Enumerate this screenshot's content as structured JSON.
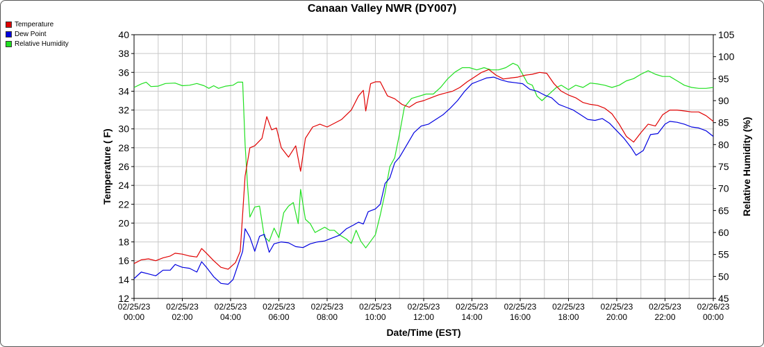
{
  "chart_data": {
    "type": "line",
    "title": "Canaan Valley NWR (DY007)",
    "xlabel": "Date/Time (EST)",
    "ylabel": "Temperature ( F)",
    "y2label": "Relative Humidity (%)",
    "xlim_hours": [
      0,
      24
    ],
    "ylim": [
      12,
      40
    ],
    "y2lim": [
      45,
      105
    ],
    "yticks": [
      "12",
      "14",
      "16",
      "18",
      "20",
      "22",
      "24",
      "26",
      "28",
      "30",
      "32",
      "34",
      "36",
      "38",
      "40"
    ],
    "y2ticks": [
      "45",
      "50",
      "55",
      "60",
      "65",
      "70",
      "75",
      "80",
      "85",
      "90",
      "95",
      "100",
      "105"
    ],
    "xticks": [
      {
        "date": "02/25/23",
        "time": "00:00"
      },
      {
        "date": "02/25/23",
        "time": "02:00"
      },
      {
        "date": "02/25/23",
        "time": "04:00"
      },
      {
        "date": "02/25/23",
        "time": "06:00"
      },
      {
        "date": "02/25/23",
        "time": "08:00"
      },
      {
        "date": "02/25/23",
        "time": "10:00"
      },
      {
        "date": "02/25/23",
        "time": "12:00"
      },
      {
        "date": "02/25/23",
        "time": "14:00"
      },
      {
        "date": "02/25/23",
        "time": "16:00"
      },
      {
        "date": "02/25/23",
        "time": "18:00"
      },
      {
        "date": "02/25/23",
        "time": "20:00"
      },
      {
        "date": "02/25/23",
        "time": "22:00"
      },
      {
        "date": "02/26/23",
        "time": "00:00"
      }
    ],
    "grid": true,
    "legend": "top-left",
    "series": [
      {
        "name": "Temperature",
        "color": "#e00000",
        "axis": "left",
        "points": [
          [
            0,
            15.7
          ],
          [
            0.3,
            16.1
          ],
          [
            0.6,
            16.2
          ],
          [
            0.9,
            16.0
          ],
          [
            1.2,
            16.3
          ],
          [
            1.5,
            16.5
          ],
          [
            1.7,
            16.8
          ],
          [
            2.0,
            16.7
          ],
          [
            2.3,
            16.5
          ],
          [
            2.6,
            16.4
          ],
          [
            2.8,
            17.3
          ],
          [
            3.0,
            16.8
          ],
          [
            3.3,
            16.0
          ],
          [
            3.6,
            15.3
          ],
          [
            3.9,
            15.1
          ],
          [
            4.2,
            15.8
          ],
          [
            4.4,
            17.0
          ],
          [
            4.6,
            25.0
          ],
          [
            4.8,
            28.0
          ],
          [
            5.0,
            28.2
          ],
          [
            5.3,
            29.0
          ],
          [
            5.5,
            31.3
          ],
          [
            5.7,
            29.9
          ],
          [
            5.9,
            30.1
          ],
          [
            6.1,
            28.0
          ],
          [
            6.4,
            27.0
          ],
          [
            6.7,
            28.2
          ],
          [
            6.9,
            25.5
          ],
          [
            7.1,
            29.0
          ],
          [
            7.4,
            30.2
          ],
          [
            7.7,
            30.5
          ],
          [
            8.0,
            30.2
          ],
          [
            8.3,
            30.6
          ],
          [
            8.6,
            31.0
          ],
          [
            9.0,
            32.0
          ],
          [
            9.3,
            33.5
          ],
          [
            9.5,
            34.1
          ],
          [
            9.6,
            31.9
          ],
          [
            9.8,
            34.8
          ],
          [
            10.0,
            35.0
          ],
          [
            10.2,
            35.0
          ],
          [
            10.5,
            33.5
          ],
          [
            10.8,
            33.2
          ],
          [
            11.1,
            32.6
          ],
          [
            11.4,
            32.3
          ],
          [
            11.7,
            32.8
          ],
          [
            12.0,
            33.0
          ],
          [
            12.3,
            33.3
          ],
          [
            12.6,
            33.6
          ],
          [
            12.9,
            33.8
          ],
          [
            13.2,
            34.0
          ],
          [
            13.5,
            34.4
          ],
          [
            13.8,
            35.0
          ],
          [
            14.1,
            35.5
          ],
          [
            14.4,
            36.0
          ],
          [
            14.7,
            36.3
          ],
          [
            15.0,
            35.7
          ],
          [
            15.3,
            35.3
          ],
          [
            15.6,
            35.4
          ],
          [
            15.9,
            35.5
          ],
          [
            16.2,
            35.7
          ],
          [
            16.5,
            35.8
          ],
          [
            16.8,
            36.0
          ],
          [
            17.1,
            35.9
          ],
          [
            17.4,
            34.8
          ],
          [
            17.7,
            34.0
          ],
          [
            18.0,
            33.6
          ],
          [
            18.3,
            33.3
          ],
          [
            18.6,
            32.8
          ],
          [
            18.9,
            32.6
          ],
          [
            19.2,
            32.5
          ],
          [
            19.5,
            32.2
          ],
          [
            19.8,
            31.6
          ],
          [
            20.1,
            30.5
          ],
          [
            20.4,
            29.2
          ],
          [
            20.7,
            28.6
          ],
          [
            21.0,
            29.6
          ],
          [
            21.3,
            30.5
          ],
          [
            21.6,
            30.3
          ],
          [
            21.9,
            31.5
          ],
          [
            22.2,
            32.0
          ],
          [
            22.5,
            32.0
          ],
          [
            22.8,
            31.9
          ],
          [
            23.1,
            31.8
          ],
          [
            23.4,
            31.8
          ],
          [
            23.7,
            31.4
          ],
          [
            24.0,
            30.8
          ]
        ]
      },
      {
        "name": "Dew Point",
        "color": "#0000e0",
        "axis": "left",
        "points": [
          [
            0,
            14.1
          ],
          [
            0.3,
            14.8
          ],
          [
            0.6,
            14.6
          ],
          [
            0.9,
            14.4
          ],
          [
            1.2,
            15.0
          ],
          [
            1.5,
            15.0
          ],
          [
            1.7,
            15.6
          ],
          [
            2.0,
            15.3
          ],
          [
            2.3,
            15.2
          ],
          [
            2.6,
            14.8
          ],
          [
            2.8,
            15.9
          ],
          [
            3.0,
            15.3
          ],
          [
            3.3,
            14.3
          ],
          [
            3.6,
            13.6
          ],
          [
            3.9,
            13.5
          ],
          [
            4.1,
            14.0
          ],
          [
            4.3,
            15.5
          ],
          [
            4.5,
            17.0
          ],
          [
            4.6,
            19.4
          ],
          [
            4.8,
            18.5
          ],
          [
            5.0,
            17.0
          ],
          [
            5.2,
            18.6
          ],
          [
            5.4,
            18.8
          ],
          [
            5.6,
            16.9
          ],
          [
            5.8,
            17.8
          ],
          [
            6.1,
            18.0
          ],
          [
            6.4,
            17.9
          ],
          [
            6.7,
            17.5
          ],
          [
            7.0,
            17.4
          ],
          [
            7.3,
            17.8
          ],
          [
            7.6,
            18.0
          ],
          [
            7.9,
            18.1
          ],
          [
            8.2,
            18.4
          ],
          [
            8.5,
            18.7
          ],
          [
            8.8,
            19.4
          ],
          [
            9.1,
            19.8
          ],
          [
            9.3,
            20.1
          ],
          [
            9.5,
            19.9
          ],
          [
            9.7,
            21.2
          ],
          [
            10.0,
            21.5
          ],
          [
            10.2,
            22.0
          ],
          [
            10.4,
            24.2
          ],
          [
            10.6,
            24.8
          ],
          [
            10.8,
            26.4
          ],
          [
            11.0,
            27.0
          ],
          [
            11.3,
            28.3
          ],
          [
            11.6,
            29.6
          ],
          [
            11.9,
            30.3
          ],
          [
            12.2,
            30.5
          ],
          [
            12.5,
            31.0
          ],
          [
            12.8,
            31.5
          ],
          [
            13.1,
            32.2
          ],
          [
            13.4,
            33.0
          ],
          [
            13.7,
            34.0
          ],
          [
            14.0,
            34.8
          ],
          [
            14.3,
            35.1
          ],
          [
            14.6,
            35.4
          ],
          [
            14.9,
            35.5
          ],
          [
            15.2,
            35.2
          ],
          [
            15.5,
            35.0
          ],
          [
            15.8,
            34.9
          ],
          [
            16.1,
            34.8
          ],
          [
            16.4,
            34.2
          ],
          [
            16.7,
            34.0
          ],
          [
            17.0,
            33.6
          ],
          [
            17.3,
            33.3
          ],
          [
            17.6,
            32.6
          ],
          [
            17.9,
            32.3
          ],
          [
            18.2,
            32.0
          ],
          [
            18.5,
            31.5
          ],
          [
            18.8,
            31.0
          ],
          [
            19.1,
            30.9
          ],
          [
            19.4,
            31.1
          ],
          [
            19.7,
            30.6
          ],
          [
            20.0,
            29.8
          ],
          [
            20.3,
            29.0
          ],
          [
            20.6,
            28.0
          ],
          [
            20.8,
            27.2
          ],
          [
            21.1,
            27.7
          ],
          [
            21.4,
            29.4
          ],
          [
            21.7,
            29.5
          ],
          [
            22.0,
            30.5
          ],
          [
            22.2,
            30.8
          ],
          [
            22.5,
            30.7
          ],
          [
            22.8,
            30.5
          ],
          [
            23.1,
            30.2
          ],
          [
            23.4,
            30.1
          ],
          [
            23.7,
            29.8
          ],
          [
            24.0,
            29.2
          ]
        ]
      },
      {
        "name": "Relative Humidity",
        "color": "#20e020",
        "axis": "right",
        "points": [
          [
            0,
            93.0
          ],
          [
            0.3,
            93.8
          ],
          [
            0.5,
            94.2
          ],
          [
            0.7,
            93.2
          ],
          [
            1.0,
            93.3
          ],
          [
            1.3,
            93.9
          ],
          [
            1.7,
            94.0
          ],
          [
            2.0,
            93.4
          ],
          [
            2.3,
            93.5
          ],
          [
            2.6,
            93.9
          ],
          [
            2.9,
            93.4
          ],
          [
            3.1,
            92.8
          ],
          [
            3.3,
            93.4
          ],
          [
            3.5,
            92.8
          ],
          [
            3.8,
            93.3
          ],
          [
            4.1,
            93.5
          ],
          [
            4.3,
            94.2
          ],
          [
            4.5,
            94.2
          ],
          [
            4.6,
            80.0
          ],
          [
            4.7,
            71.0
          ],
          [
            4.8,
            63.5
          ],
          [
            5.0,
            65.8
          ],
          [
            5.2,
            66.0
          ],
          [
            5.4,
            59.0
          ],
          [
            5.6,
            58.0
          ],
          [
            5.8,
            61.0
          ],
          [
            6.0,
            58.8
          ],
          [
            6.2,
            64.5
          ],
          [
            6.4,
            66.0
          ],
          [
            6.6,
            66.8
          ],
          [
            6.8,
            62.0
          ],
          [
            6.9,
            69.8
          ],
          [
            7.1,
            63.0
          ],
          [
            7.3,
            62.0
          ],
          [
            7.5,
            60.0
          ],
          [
            7.7,
            60.6
          ],
          [
            7.9,
            61.2
          ],
          [
            8.1,
            60.5
          ],
          [
            8.3,
            60.5
          ],
          [
            8.5,
            59.5
          ],
          [
            8.8,
            58.5
          ],
          [
            9.0,
            57.5
          ],
          [
            9.2,
            60.5
          ],
          [
            9.4,
            58.0
          ],
          [
            9.6,
            56.5
          ],
          [
            9.8,
            58.0
          ],
          [
            10.0,
            59.5
          ],
          [
            10.2,
            64.0
          ],
          [
            10.4,
            69.0
          ],
          [
            10.6,
            75.0
          ],
          [
            10.8,
            77.0
          ],
          [
            11.0,
            82.5
          ],
          [
            11.2,
            88.5
          ],
          [
            11.5,
            90.5
          ],
          [
            11.8,
            91.0
          ],
          [
            12.1,
            91.5
          ],
          [
            12.4,
            91.5
          ],
          [
            12.7,
            93.0
          ],
          [
            13.0,
            95.0
          ],
          [
            13.3,
            96.5
          ],
          [
            13.6,
            97.5
          ],
          [
            13.9,
            97.5
          ],
          [
            14.2,
            97.0
          ],
          [
            14.5,
            97.5
          ],
          [
            14.8,
            97.0
          ],
          [
            15.1,
            97.0
          ],
          [
            15.4,
            97.5
          ],
          [
            15.7,
            98.5
          ],
          [
            15.9,
            98.0
          ],
          [
            16.1,
            96.0
          ],
          [
            16.3,
            94.0
          ],
          [
            16.5,
            93.5
          ],
          [
            16.7,
            91.0
          ],
          [
            16.9,
            90.0
          ],
          [
            17.1,
            91.0
          ],
          [
            17.3,
            92.0
          ],
          [
            17.5,
            93.0
          ],
          [
            17.7,
            93.5
          ],
          [
            18.0,
            92.5
          ],
          [
            18.3,
            93.5
          ],
          [
            18.6,
            93.0
          ],
          [
            18.9,
            94.0
          ],
          [
            19.2,
            93.8
          ],
          [
            19.5,
            93.5
          ],
          [
            19.8,
            93.0
          ],
          [
            20.1,
            93.5
          ],
          [
            20.4,
            94.5
          ],
          [
            20.7,
            95.0
          ],
          [
            21.0,
            96.0
          ],
          [
            21.3,
            96.8
          ],
          [
            21.6,
            96.0
          ],
          [
            21.9,
            95.5
          ],
          [
            22.2,
            95.5
          ],
          [
            22.5,
            94.5
          ],
          [
            22.8,
            93.5
          ],
          [
            23.1,
            93.0
          ],
          [
            23.4,
            92.8
          ],
          [
            23.7,
            92.8
          ],
          [
            24.0,
            93.0
          ]
        ]
      }
    ]
  }
}
